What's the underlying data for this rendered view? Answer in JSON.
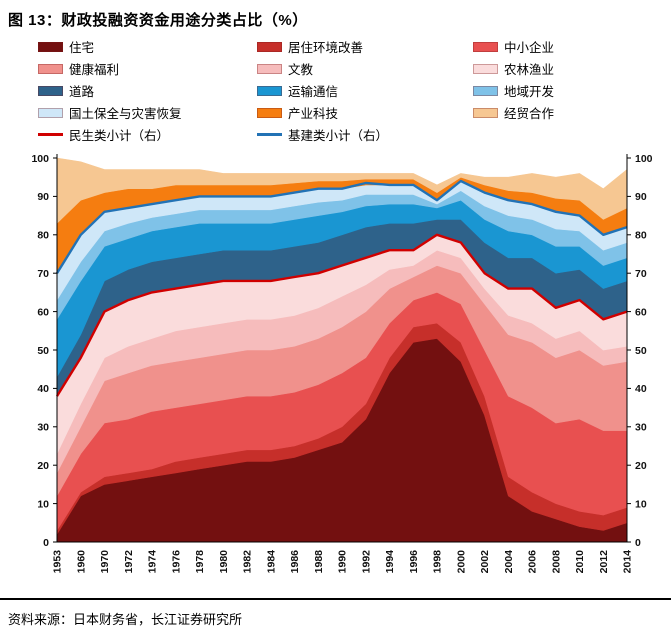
{
  "figure": {
    "title": "图  13：财政投融资资金用途分类占比（%）",
    "source": "资料来源：日本财务省，长江证券研究所"
  },
  "chart_data": {
    "type": "area",
    "stacked": true,
    "title": "财政投融资资金用途分类占比（%）",
    "legend_position": "top",
    "grid": false,
    "ylim": [
      0,
      100
    ],
    "y_ticks": [
      0,
      10,
      20,
      30,
      40,
      50,
      60,
      70,
      80,
      90,
      100
    ],
    "axes": {
      "left": true,
      "right": true,
      "right_note": "小计线使用右轴"
    },
    "x": [
      "1953",
      "1960",
      "1970",
      "1972",
      "1974",
      "1976",
      "1978",
      "1980",
      "1982",
      "1984",
      "1986",
      "1988",
      "1990",
      "1992",
      "1994",
      "1996",
      "1998",
      "2000",
      "2002",
      "2004",
      "2006",
      "2008",
      "2010",
      "2012",
      "2014"
    ],
    "series": [
      {
        "id": "zhuzhai",
        "name": "住宅",
        "type": "area",
        "color": "#731010",
        "values": [
          2,
          12,
          15,
          16,
          17,
          18,
          19,
          20,
          21,
          21,
          22,
          24,
          26,
          32,
          44,
          52,
          53,
          47,
          33,
          12,
          8,
          6,
          4,
          3,
          5
        ]
      },
      {
        "id": "juzhuhuanjing",
        "name": "居住环境改善",
        "type": "area",
        "color": "#c62f2a",
        "values": [
          1,
          1,
          2,
          2,
          2,
          3,
          3,
          3,
          3,
          3,
          3,
          3,
          4,
          4,
          4,
          4,
          4,
          5,
          5,
          5,
          5,
          4,
          4,
          4,
          4
        ]
      },
      {
        "id": "zhongxiaoqiye",
        "name": "中小企业",
        "type": "area",
        "color": "#e85050",
        "values": [
          9,
          10,
          14,
          14,
          15,
          14,
          14,
          14,
          14,
          14,
          14,
          14,
          14,
          12,
          9,
          7,
          8,
          10,
          12,
          21,
          22,
          21,
          24,
          22,
          20
        ]
      },
      {
        "id": "jiankangfuli",
        "name": "健康福利",
        "type": "area",
        "color": "#f0918c",
        "values": [
          6,
          7,
          11,
          12,
          12,
          12,
          12,
          12,
          12,
          12,
          12,
          12,
          12,
          12,
          9,
          6,
          7,
          8,
          12,
          16,
          17,
          17,
          18,
          17,
          18
        ]
      },
      {
        "id": "wenjiao",
        "name": "文教",
        "type": "area",
        "color": "#f6bcbc",
        "values": [
          5,
          6,
          6,
          7,
          7,
          8,
          8,
          8,
          8,
          8,
          8,
          8,
          8,
          7,
          5,
          3,
          4,
          4,
          4,
          5,
          5,
          5,
          5,
          4,
          4
        ]
      },
      {
        "id": "nonglinyuye",
        "name": "农林渔业",
        "type": "area",
        "color": "#fadcdc",
        "values": [
          15,
          12,
          12,
          12,
          12,
          11,
          11,
          11,
          10,
          10,
          10,
          9,
          8,
          7,
          5,
          4,
          4,
          4,
          4,
          7,
          9,
          8,
          8,
          8,
          9
        ]
      },
      {
        "id": "daolu",
        "name": "道路",
        "type": "area",
        "color": "#2e628a",
        "values": [
          5,
          6,
          8,
          8,
          8,
          8,
          8,
          8,
          8,
          8,
          8,
          8,
          8,
          8,
          7,
          7,
          4,
          6,
          8,
          8,
          8,
          9,
          8,
          8,
          8
        ]
      },
      {
        "id": "yunshutongxin",
        "name": "运输通信",
        "type": "area",
        "color": "#1a96d2",
        "values": [
          15,
          14,
          9,
          8,
          8,
          8,
          8,
          7,
          7,
          7,
          7,
          7,
          6,
          5.5,
          5,
          5,
          3,
          5,
          6,
          7,
          6,
          7,
          6,
          6,
          6
        ]
      },
      {
        "id": "diyukaifa",
        "name": "地域开发",
        "type": "area",
        "color": "#7fc2e8",
        "values": [
          5,
          5,
          4,
          4,
          3.5,
          3.5,
          3.5,
          3.5,
          3.5,
          3.5,
          3.5,
          3.5,
          3,
          3,
          2.5,
          2.5,
          1,
          2.5,
          3.5,
          4,
          4,
          4.5,
          4,
          4,
          4
        ]
      },
      {
        "id": "guotubaoquan",
        "name": "国土保全与灾害恢复",
        "type": "area",
        "color": "#cfe7f8",
        "values": [
          7,
          7,
          5,
          4,
          3.5,
          3.5,
          3.5,
          3.5,
          3.5,
          3.5,
          3.5,
          3.5,
          3,
          2.5,
          2.5,
          2.5,
          1,
          2.5,
          3.5,
          4,
          4,
          4.5,
          4,
          4,
          4
        ]
      },
      {
        "id": "chanyekeji",
        "name": "产业科技",
        "type": "area",
        "color": "#f57d10",
        "values": [
          13,
          9,
          5,
          5,
          4,
          4,
          3,
          3,
          3,
          3,
          2.5,
          2,
          2,
          1.5,
          1.5,
          1.5,
          2,
          1,
          2,
          2.5,
          3,
          3.5,
          4,
          4,
          5
        ]
      },
      {
        "id": "jingmaohezuo",
        "name": "经贸合作",
        "type": "area",
        "color": "#f6c792",
        "values": [
          17,
          10,
          6,
          5,
          5,
          4,
          4,
          3,
          3,
          3,
          2.5,
          2,
          2,
          1.5,
          1.5,
          1.5,
          2,
          1,
          2,
          3.5,
          5,
          5.5,
          7,
          8,
          10
        ]
      },
      {
        "id": "minshengxiaoji",
        "name": "民生类小计（右）",
        "type": "line",
        "axis": "right",
        "color": "#d00000",
        "values": [
          38,
          48,
          60,
          63,
          65,
          66,
          67,
          68,
          68,
          68,
          69,
          70,
          72,
          74,
          76,
          76,
          80,
          78,
          70,
          66,
          66,
          61,
          63,
          58,
          60
        ]
      },
      {
        "id": "jijianxiaoji",
        "name": "基建类小计（右）",
        "type": "line",
        "axis": "right",
        "color": "#2272b5",
        "values": [
          70,
          80,
          86,
          87,
          88,
          89,
          90,
          90,
          90,
          90,
          91,
          92,
          92,
          93.5,
          93,
          93,
          89,
          94,
          91,
          89,
          88,
          86,
          85,
          80,
          82
        ]
      }
    ]
  }
}
